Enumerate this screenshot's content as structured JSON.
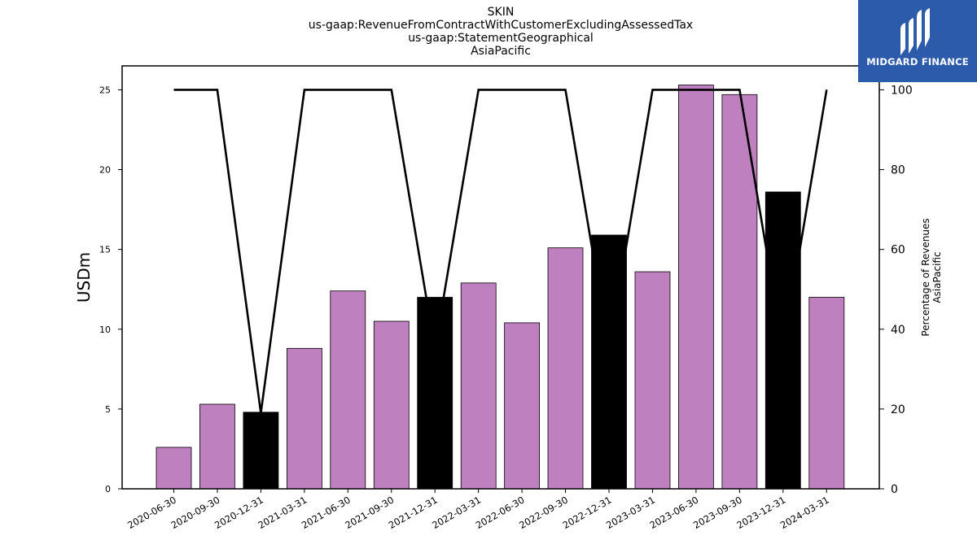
{
  "chart_data": {
    "type": "bar",
    "title_lines": [
      "SKIN",
      "us-gaap:RevenueFromContractWithCustomerExcludingAssessedTax",
      "us-gaap:StatementGeographical",
      "AsiaPacific"
    ],
    "ylabel": "USDm",
    "y2label_lines": [
      "Percentage of Revenues",
      "AsiaPacific"
    ],
    "ylim": [
      0,
      26.5
    ],
    "y2lim": [
      0,
      106
    ],
    "yticks": [
      0,
      5,
      10,
      15,
      20,
      25
    ],
    "y2ticks": [
      0,
      20,
      40,
      60,
      80,
      100
    ],
    "categories": [
      "2020-06-30",
      "2020-09-30",
      "2020-12-31",
      "2021-03-31",
      "2021-06-30",
      "2021-09-30",
      "2021-12-31",
      "2022-03-31",
      "2022-06-30",
      "2022-09-30",
      "2022-12-31",
      "2023-03-31",
      "2023-06-30",
      "2023-09-30",
      "2023-12-31",
      "2024-03-31"
    ],
    "series": [
      {
        "type": "bar",
        "values": [
          2.6,
          5.3,
          4.8,
          8.8,
          12.4,
          10.5,
          12.0,
          12.9,
          10.4,
          15.1,
          15.9,
          13.6,
          25.3,
          24.7,
          18.6,
          12.0
        ],
        "colors": [
          "#bf80bf",
          "#bf80bf",
          "#000000",
          "#bf80bf",
          "#bf80bf",
          "#bf80bf",
          "#000000",
          "#bf80bf",
          "#bf80bf",
          "#bf80bf",
          "#000000",
          "#bf80bf",
          "#bf80bf",
          "#bf80bf",
          "#000000",
          "#bf80bf"
        ]
      },
      {
        "type": "line",
        "axis": "right",
        "values": [
          100,
          100,
          19,
          100,
          100,
          100,
          35,
          100,
          100,
          100,
          35,
          100,
          100,
          100,
          35,
          100
        ],
        "color": "#000000"
      }
    ]
  },
  "logo": {
    "text": "MIDGARD FINANCE"
  }
}
